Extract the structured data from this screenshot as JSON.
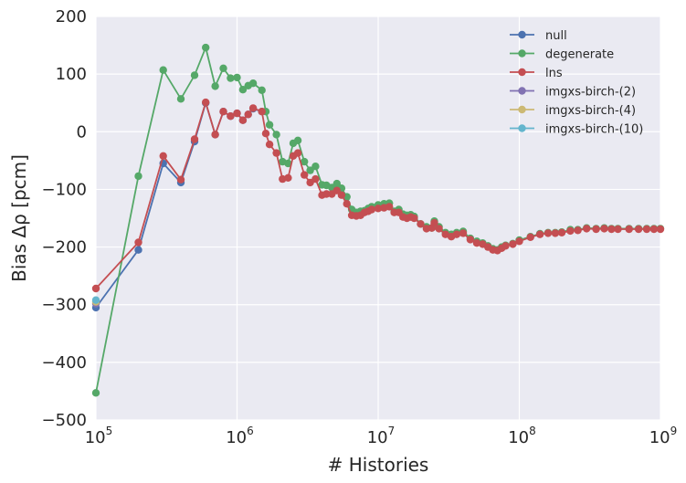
{
  "chart_data": {
    "type": "line",
    "xlabel": "# Histories",
    "ylabel": "Bias Δρ [pcm]",
    "xscale": "log",
    "xlim": [
      100000,
      1000000000
    ],
    "ylim": [
      -500,
      200
    ],
    "grid": true,
    "legend_position": "top-right",
    "x_ticks": [
      {
        "base": "10",
        "exp": "5"
      },
      {
        "base": "10",
        "exp": "6"
      },
      {
        "base": "10",
        "exp": "7"
      },
      {
        "base": "10",
        "exp": "8"
      },
      {
        "base": "10",
        "exp": "9"
      }
    ],
    "y_ticks": [
      "200",
      "100",
      "0",
      "−100",
      "−200",
      "−300",
      "−400",
      "−500"
    ],
    "series": [
      {
        "name": "null",
        "color": "#4c72b0",
        "points": [
          [
            100000,
            -305
          ],
          [
            200000,
            -205
          ],
          [
            300000,
            -55
          ],
          [
            400000,
            -88
          ],
          [
            500000,
            -17
          ],
          [
            600000,
            50
          ],
          [
            700000,
            -5
          ],
          [
            800000,
            35
          ],
          [
            900000,
            27
          ],
          [
            1000000,
            32
          ],
          [
            1100000,
            20
          ],
          [
            1200000,
            30
          ],
          [
            1300000,
            40
          ],
          [
            1500000,
            35
          ]
        ]
      },
      {
        "name": "degenerate",
        "color": "#55a868",
        "points": [
          [
            100000,
            -453
          ],
          [
            200000,
            -77
          ],
          [
            300000,
            107
          ],
          [
            400000,
            57
          ],
          [
            500000,
            98
          ],
          [
            600000,
            146
          ],
          [
            700000,
            79
          ],
          [
            800000,
            110
          ],
          [
            900000,
            93
          ],
          [
            1000000,
            94
          ],
          [
            1100000,
            73
          ],
          [
            1200000,
            80
          ],
          [
            1300000,
            84
          ],
          [
            1500000,
            72
          ],
          [
            1600000,
            35
          ],
          [
            1700000,
            12
          ],
          [
            1900000,
            -5
          ],
          [
            2100000,
            -52
          ],
          [
            2300000,
            -55
          ],
          [
            2500000,
            -20
          ],
          [
            2700000,
            -15
          ],
          [
            3000000,
            -52
          ],
          [
            3300000,
            -67
          ],
          [
            3600000,
            -60
          ],
          [
            4000000,
            -92
          ],
          [
            4300000,
            -93
          ],
          [
            4700000,
            -97
          ],
          [
            5100000,
            -90
          ],
          [
            5500000,
            -98
          ],
          [
            6000000,
            -113
          ],
          [
            6500000,
            -135
          ],
          [
            7000000,
            -140
          ],
          [
            7500000,
            -138
          ],
          [
            8000000,
            -137
          ],
          [
            8500000,
            -133
          ],
          [
            9000000,
            -130
          ],
          [
            10000000,
            -127
          ],
          [
            11000000,
            -125
          ],
          [
            12000000,
            -124
          ],
          [
            13000000,
            -138
          ],
          [
            14000000,
            -135
          ],
          [
            15000000,
            -143
          ],
          [
            16000000,
            -145
          ],
          [
            17000000,
            -144
          ],
          [
            18000000,
            -147
          ],
          [
            20000000,
            -160
          ],
          [
            22000000,
            -165
          ],
          [
            24000000,
            -167
          ],
          [
            25000000,
            -155
          ],
          [
            27000000,
            -165
          ],
          [
            30000000,
            -175
          ],
          [
            33000000,
            -178
          ],
          [
            36000000,
            -175
          ],
          [
            40000000,
            -173
          ],
          [
            45000000,
            -185
          ],
          [
            50000000,
            -190
          ],
          [
            55000000,
            -193
          ],
          [
            60000000,
            -198
          ],
          [
            65000000,
            -203
          ],
          [
            70000000,
            -205
          ],
          [
            75000000,
            -200
          ],
          [
            80000000,
            -197
          ],
          [
            90000000,
            -194
          ],
          [
            100000000,
            -188
          ],
          [
            120000000,
            -182
          ],
          [
            140000000,
            -177
          ],
          [
            160000000,
            -175
          ],
          [
            180000000,
            -175
          ],
          [
            200000000,
            -174
          ],
          [
            230000000,
            -170
          ],
          [
            260000000,
            -170
          ],
          [
            300000000,
            -167
          ],
          [
            350000000,
            -168
          ],
          [
            400000000,
            -167
          ],
          [
            450000000,
            -168
          ],
          [
            500000000,
            -168
          ],
          [
            600000000,
            -168
          ],
          [
            700000000,
            -168
          ],
          [
            800000000,
            -168
          ],
          [
            900000000,
            -168
          ],
          [
            1000000000,
            -168
          ]
        ]
      },
      {
        "name": "lns",
        "color": "#c44e52",
        "points": [
          [
            100000,
            -272
          ],
          [
            200000,
            -192
          ],
          [
            300000,
            -42
          ],
          [
            400000,
            -83
          ],
          [
            500000,
            -13
          ],
          [
            600000,
            51
          ],
          [
            700000,
            -5
          ],
          [
            800000,
            35
          ],
          [
            900000,
            27
          ],
          [
            1000000,
            32
          ],
          [
            1100000,
            20
          ],
          [
            1200000,
            30
          ],
          [
            1300000,
            41
          ],
          [
            1500000,
            35
          ],
          [
            1600000,
            -3
          ],
          [
            1700000,
            -22
          ],
          [
            1900000,
            -37
          ],
          [
            2100000,
            -82
          ],
          [
            2300000,
            -80
          ],
          [
            2500000,
            -42
          ],
          [
            2700000,
            -37
          ],
          [
            3000000,
            -75
          ],
          [
            3300000,
            -88
          ],
          [
            3600000,
            -82
          ],
          [
            4000000,
            -110
          ],
          [
            4300000,
            -108
          ],
          [
            4700000,
            -108
          ],
          [
            5100000,
            -102
          ],
          [
            5500000,
            -110
          ],
          [
            6000000,
            -125
          ],
          [
            6500000,
            -145
          ],
          [
            7000000,
            -146
          ],
          [
            7500000,
            -145
          ],
          [
            8000000,
            -140
          ],
          [
            8500000,
            -138
          ],
          [
            9000000,
            -135
          ],
          [
            10000000,
            -133
          ],
          [
            11000000,
            -132
          ],
          [
            12000000,
            -130
          ],
          [
            13000000,
            -140
          ],
          [
            14000000,
            -140
          ],
          [
            15000000,
            -148
          ],
          [
            16000000,
            -150
          ],
          [
            17000000,
            -148
          ],
          [
            18000000,
            -150
          ],
          [
            20000000,
            -160
          ],
          [
            22000000,
            -168
          ],
          [
            24000000,
            -167
          ],
          [
            25000000,
            -158
          ],
          [
            27000000,
            -168
          ],
          [
            30000000,
            -178
          ],
          [
            33000000,
            -182
          ],
          [
            36000000,
            -178
          ],
          [
            40000000,
            -176
          ],
          [
            45000000,
            -187
          ],
          [
            50000000,
            -193
          ],
          [
            55000000,
            -195
          ],
          [
            60000000,
            -200
          ],
          [
            65000000,
            -205
          ],
          [
            70000000,
            -206
          ],
          [
            75000000,
            -202
          ],
          [
            80000000,
            -198
          ],
          [
            90000000,
            -195
          ],
          [
            100000000,
            -190
          ],
          [
            120000000,
            -183
          ],
          [
            140000000,
            -178
          ],
          [
            160000000,
            -176
          ],
          [
            180000000,
            -176
          ],
          [
            200000000,
            -175
          ],
          [
            230000000,
            -172
          ],
          [
            260000000,
            -171
          ],
          [
            300000000,
            -168
          ],
          [
            350000000,
            -169
          ],
          [
            400000000,
            -168
          ],
          [
            450000000,
            -169
          ],
          [
            500000000,
            -169
          ],
          [
            600000000,
            -169
          ],
          [
            700000000,
            -169
          ],
          [
            800000000,
            -169
          ],
          [
            900000000,
            -169
          ],
          [
            1000000000,
            -169
          ]
        ]
      },
      {
        "name": "imgxs-birch-(2)",
        "color": "#8172b2",
        "points": [
          [
            100000,
            -298
          ]
        ]
      },
      {
        "name": "imgxs-birch-(4)",
        "color": "#ccb974",
        "points": [
          [
            100000,
            -295
          ]
        ]
      },
      {
        "name": "imgxs-birch-(10)",
        "color": "#64b5cd",
        "points": [
          [
            100000,
            -292
          ]
        ]
      }
    ]
  }
}
